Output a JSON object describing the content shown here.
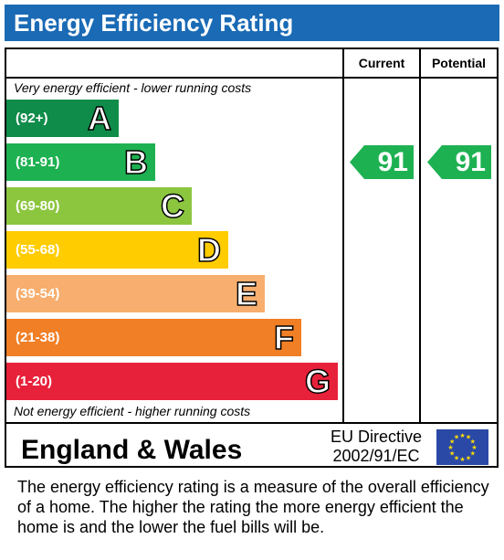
{
  "title": "Energy Efficiency Rating",
  "columns": {
    "current": "Current",
    "potential": "Potential"
  },
  "notes": {
    "top": "Very energy efficient - lower running costs",
    "bottom": "Not energy efficient - higher running costs"
  },
  "chart_data": {
    "type": "bar",
    "title": "Energy Efficiency Rating",
    "categories": [
      "A",
      "B",
      "C",
      "D",
      "E",
      "F",
      "G"
    ],
    "ranges": [
      "(92+)",
      "(81-91)",
      "(69-80)",
      "(55-68)",
      "(39-54)",
      "(21-38)",
      "(1-20)"
    ],
    "colors": [
      "#0f8c4a",
      "#1eb152",
      "#8cc63f",
      "#ffcc00",
      "#f7ae6e",
      "#f07f26",
      "#e8213b"
    ],
    "current": {
      "value": 91,
      "band": "B"
    },
    "potential": {
      "value": 91,
      "band": "B"
    }
  },
  "footer": {
    "region": "England & Wales",
    "directive_line1": "EU Directive",
    "directive_line2": "2002/91/EC",
    "flag_color": "#2a49a6",
    "star_color": "#ffdd00"
  },
  "description": "The energy efficiency rating is a measure of the overall efficiency of a home.  The higher the rating the more energy efficient the home is and the lower the fuel bills will be."
}
